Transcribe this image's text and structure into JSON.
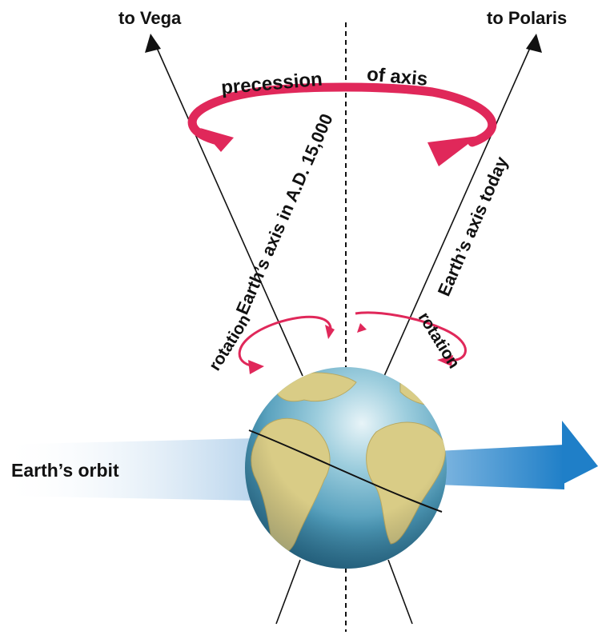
{
  "labels": {
    "to_vega": "to Vega",
    "to_polaris": "to Polaris",
    "precession_word": "precession",
    "of_axis_word": "of axis",
    "axis_future": "Earth’s axis in A.D. 15,000",
    "axis_today": "Earth’s axis today",
    "rotation_left": "rotation",
    "rotation_right": "rotation",
    "earths_orbit": "Earth’s orbit"
  },
  "colors": {
    "arrow_pink": "#e0285a",
    "orbit_blue": "#2a86cc",
    "ocean": "#4f9fbf",
    "land": "#d9cc86",
    "line": "#111111"
  },
  "icons": {
    "vega_arrowhead": "triangle-up",
    "polaris_arrowhead": "triangle-up",
    "orbit_arrowhead": "triangle-right"
  }
}
